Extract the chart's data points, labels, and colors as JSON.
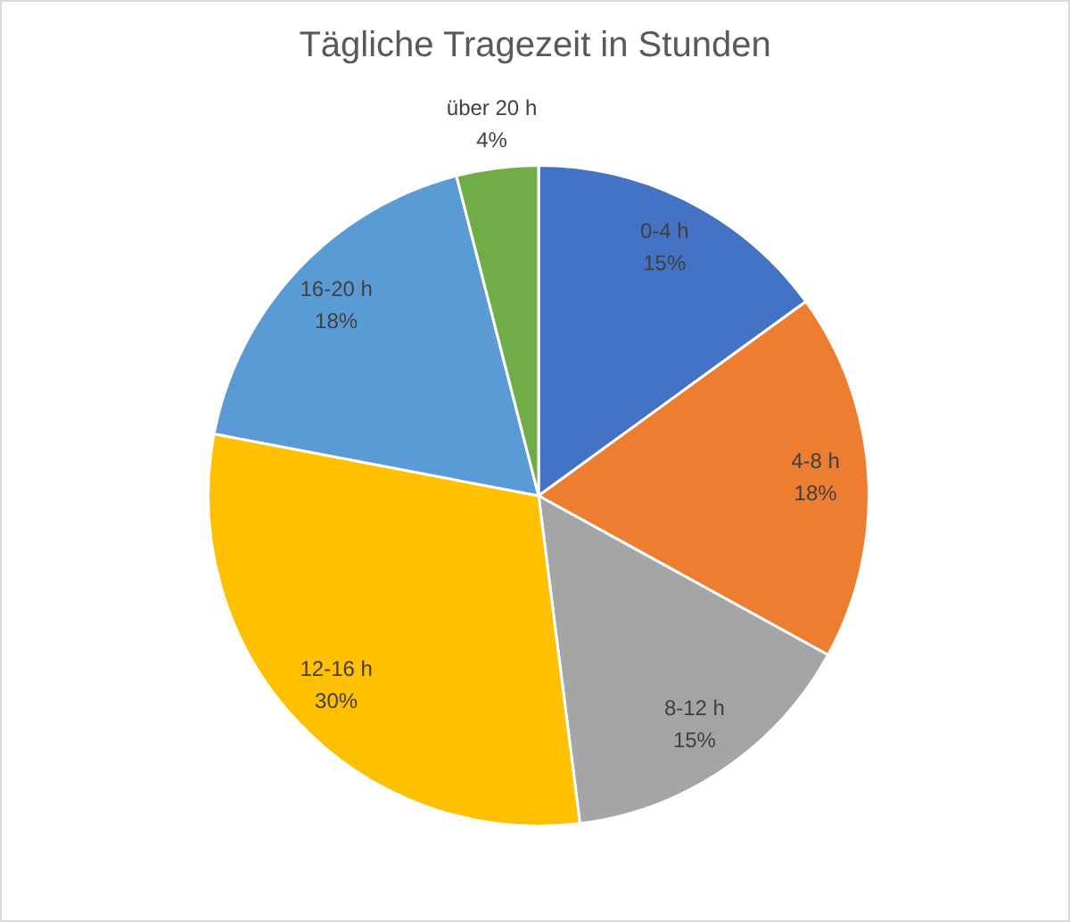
{
  "chart_data": {
    "type": "pie",
    "title": "Tägliche Tragezeit in Stunden",
    "categories": [
      "0-4 h",
      "4-8 h",
      "8-12 h",
      "12-16 h",
      "16-20 h",
      "über 20 h"
    ],
    "values": [
      15,
      18,
      15,
      30,
      18,
      4
    ],
    "value_labels": [
      "15%",
      "18%",
      "15%",
      "30%",
      "18%",
      "4%"
    ],
    "colors": [
      "#4472c4",
      "#ed7d31",
      "#a5a5a5",
      "#ffc000",
      "#5b9bd5",
      "#70ad47"
    ],
    "legend": false
  }
}
